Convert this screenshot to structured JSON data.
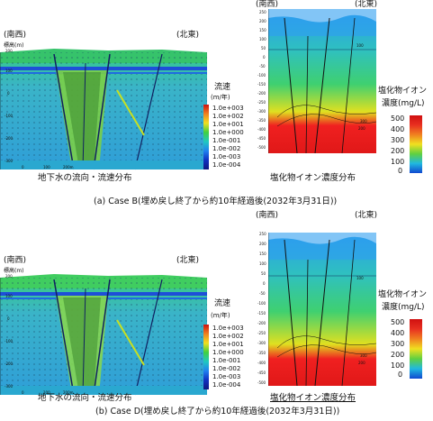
{
  "case_b": {
    "flow": {
      "dir_left": "(南西)",
      "dir_right": "(北東)",
      "axis_title": "標高(m)",
      "y_ticks": [
        "200",
        "100",
        "0",
        "-100",
        "-200",
        "-300"
      ],
      "x_ticks": [
        "0",
        "100",
        "200m"
      ],
      "legend_title": "流速",
      "legend_unit": "(m/年)",
      "legend_values": [
        "1.0e+003",
        "1.0e+002",
        "1.0e+001",
        "1.0e+000",
        "1.0e-001",
        "1.0e-002",
        "1.0e-003",
        "1.0e-004"
      ],
      "caption": "地下水の流向・流速分布"
    },
    "chloride": {
      "dir_left": "(南西)",
      "dir_right": "(北東)",
      "y_ticks": [
        "250",
        "200",
        "150",
        "100",
        "50",
        "0",
        "-50",
        "-100",
        "-150",
        "-200",
        "-250",
        "-300",
        "-350",
        "-400",
        "-450",
        "-500"
      ],
      "contours": [
        "100",
        "300",
        "200"
      ],
      "legend_title": "塩化物イオン",
      "legend_unit": "濃度(mg/L)",
      "legend_values": [
        "500",
        "400",
        "300",
        "200",
        "100",
        "0"
      ],
      "caption": "塩化物イオン濃度分布"
    },
    "caption": "(a) Case B(埋め戻し終了から約10年経過後(2032年3月31日))"
  },
  "case_d": {
    "flow": {
      "dir_left": "(南西)",
      "dir_right": "(北東)",
      "axis_title": "標高(m)",
      "y_ticks": [
        "200",
        "100",
        "0",
        "-100",
        "-200",
        "-300"
      ],
      "x_ticks": [
        "0",
        "100",
        "200m"
      ],
      "legend_title": "流速",
      "legend_unit": "(m/年)",
      "legend_values": [
        "1.0e+003",
        "1.0e+002",
        "1.0e+001",
        "1.0e+000",
        "1.0e-001",
        "1.0e-002",
        "1.0e-003",
        "1.0e-004"
      ],
      "caption": "地下水の流向・流速分布"
    },
    "chloride": {
      "dir_left": "(南西)",
      "dir_right": "(北東)",
      "y_ticks": [
        "250",
        "200",
        "150",
        "100",
        "50",
        "0",
        "-50",
        "-100",
        "-150",
        "-200",
        "-250",
        "-300",
        "-350",
        "-400",
        "-450",
        "-500"
      ],
      "contours": [
        "100",
        "300",
        "200"
      ],
      "legend_title": "塩化物イオン",
      "legend_unit": "濃度(mg/L)",
      "legend_values": [
        "500",
        "400",
        "300",
        "200",
        "100",
        "0"
      ],
      "caption": "塩化物イオン濃度分布"
    },
    "caption": "(b) Case D(埋め戻し終了から約10年経過後(2032年3月31日))"
  },
  "colors": {
    "flow_cbar": [
      "#d01010",
      "#f08020",
      "#f0e020",
      "#40d040",
      "#20c8c0",
      "#2080f0",
      "#1030c0",
      "#101880"
    ],
    "chloride_cbar": [
      "#d01010",
      "#f08020",
      "#f0e020",
      "#60d040",
      "#20b8e0",
      "#1048d0"
    ],
    "sky": "#ffffff",
    "ground_green": "#2fc46a",
    "ground_blue": "#2a90f0",
    "deep_red": "#e81c1c"
  }
}
